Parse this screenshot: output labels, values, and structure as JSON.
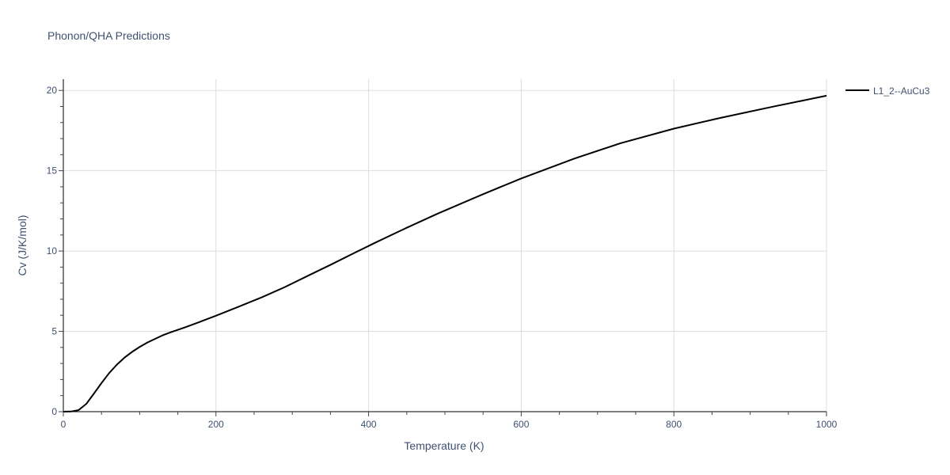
{
  "chart_data": {
    "type": "line",
    "title": "Phonon/QHA Predictions",
    "xlabel": "Temperature (K)",
    "ylabel": "Cv (J/K/mol)",
    "xlim": [
      0,
      1000
    ],
    "ylim": [
      0,
      20.7
    ],
    "x_ticks": [
      0,
      200,
      400,
      600,
      800,
      1000
    ],
    "x_tick_labels": [
      "0",
      "200",
      "400",
      "600",
      "800",
      "1000"
    ],
    "y_ticks": [
      0,
      5,
      10,
      15,
      20
    ],
    "y_tick_labels": [
      "0",
      "5",
      "10",
      "15",
      "20"
    ],
    "grid": true,
    "legend_position": "right",
    "series": [
      {
        "name": "L1_2--AuCu3",
        "color": "#000000",
        "x": [
          0,
          10,
          20,
          30,
          40,
          50,
          60,
          70,
          80,
          90,
          100,
          110,
          120,
          130,
          140,
          160,
          180,
          200,
          230,
          260,
          290,
          320,
          350,
          380,
          410,
          450,
          490,
          550,
          600,
          670,
          730,
          800,
          860,
          930,
          1000
        ],
        "y": [
          0,
          0.01,
          0.1,
          0.48,
          1.12,
          1.78,
          2.4,
          2.92,
          3.36,
          3.72,
          4.03,
          4.3,
          4.53,
          4.75,
          4.93,
          5.26,
          5.61,
          5.97,
          6.54,
          7.12,
          7.75,
          8.45,
          9.14,
          9.85,
          10.55,
          11.45,
          12.32,
          13.54,
          14.52,
          15.76,
          16.71,
          17.62,
          18.28,
          18.99,
          19.67
        ]
      }
    ]
  }
}
